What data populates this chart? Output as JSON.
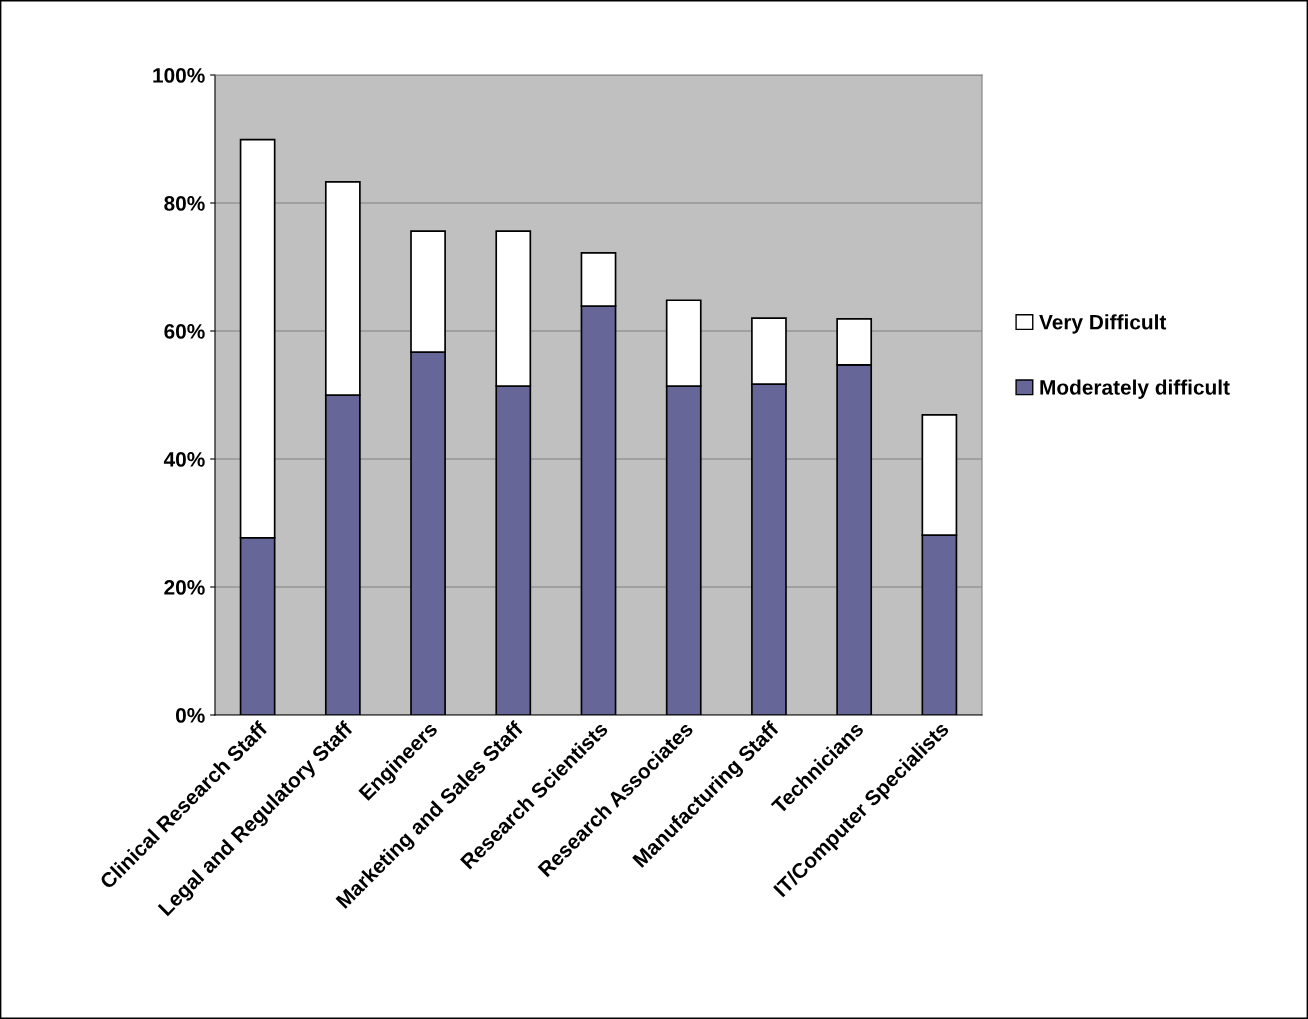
{
  "chart_data": {
    "type": "bar",
    "stacked": true,
    "categories": [
      "Clinical Research Staff",
      "Legal and Regulatory Staff",
      "Engineers",
      "Marketing and Sales Staff",
      "Research Scientists",
      "Research Associates",
      "Manufacturing Staff",
      "Technicians",
      "IT/Computer Specialists"
    ],
    "series": [
      {
        "name": "Moderately difficult",
        "color": "#666699",
        "values": [
          27.7,
          50.0,
          56.7,
          51.4,
          63.9,
          51.4,
          51.7,
          54.7,
          28.1
        ]
      },
      {
        "name": "Very Difficult",
        "color": "#ffffff",
        "values": [
          62.2,
          33.3,
          18.9,
          24.2,
          8.3,
          13.4,
          10.3,
          7.2,
          18.8
        ]
      }
    ],
    "ylim": [
      0,
      100
    ],
    "yticks": [
      {
        "value": 0,
        "label": "0%"
      },
      {
        "value": 20,
        "label": "20%"
      },
      {
        "value": 40,
        "label": "40%"
      },
      {
        "value": 60,
        "label": "60%"
      },
      {
        "value": 80,
        "label": "80%"
      },
      {
        "value": 100,
        "label": "100%"
      }
    ],
    "grid": "y",
    "legend": "right"
  }
}
